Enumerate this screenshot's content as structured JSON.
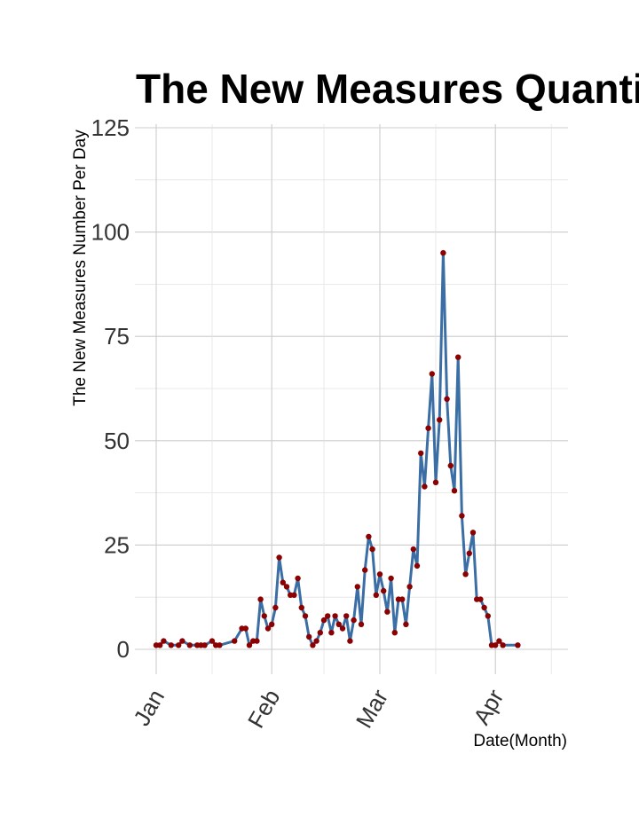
{
  "chart_data": {
    "type": "line",
    "title": "The New Measures Quantity Per Day",
    "xlabel": "Date(Month)",
    "ylabel": "The New Measures Number Per Day",
    "x_ticks": [
      "Jan",
      "Feb",
      "Mar",
      "Apr"
    ],
    "y_ticks": [
      "0",
      "25",
      "50",
      "75",
      "100",
      "125"
    ],
    "ylim": [
      0,
      125
    ],
    "xlim": [
      "2020-01-01",
      "2020-04-30"
    ],
    "grid": true,
    "line_color": "#3a6ea5",
    "point_color": "#8b0000",
    "series": [
      {
        "x": [
          "2020-01-01",
          "2020-01-02",
          "2020-01-03",
          "2020-01-05",
          "2020-01-07",
          "2020-01-08",
          "2020-01-10",
          "2020-01-12",
          "2020-01-13",
          "2020-01-14",
          "2020-01-16",
          "2020-01-17",
          "2020-01-18",
          "2020-01-22",
          "2020-01-24",
          "2020-01-25",
          "2020-01-26",
          "2020-01-27",
          "2020-01-28",
          "2020-01-29",
          "2020-01-30",
          "2020-01-31",
          "2020-02-01",
          "2020-02-02",
          "2020-02-03",
          "2020-02-04",
          "2020-02-05",
          "2020-02-06",
          "2020-02-07",
          "2020-02-08",
          "2020-02-09",
          "2020-02-10",
          "2020-02-11",
          "2020-02-12",
          "2020-02-13",
          "2020-02-14",
          "2020-02-15",
          "2020-02-16",
          "2020-02-17",
          "2020-02-18",
          "2020-02-19",
          "2020-02-20",
          "2020-02-21",
          "2020-02-22",
          "2020-02-23",
          "2020-02-24",
          "2020-02-25",
          "2020-02-26",
          "2020-02-27",
          "2020-02-28",
          "2020-02-29",
          "2020-03-01",
          "2020-03-02",
          "2020-03-03",
          "2020-03-04",
          "2020-03-05",
          "2020-03-06",
          "2020-03-07",
          "2020-03-08",
          "2020-03-09",
          "2020-03-10",
          "2020-03-11",
          "2020-03-12",
          "2020-03-13",
          "2020-03-14",
          "2020-03-15",
          "2020-03-16",
          "2020-03-17",
          "2020-03-18",
          "2020-03-19",
          "2020-03-20",
          "2020-03-21",
          "2020-03-22",
          "2020-03-23",
          "2020-03-24",
          "2020-03-25",
          "2020-03-26",
          "2020-03-27",
          "2020-03-28",
          "2020-03-29",
          "2020-03-30",
          "2020-03-31",
          "2020-04-01",
          "2020-04-02",
          "2020-04-03",
          "2020-04-07"
        ],
        "values": [
          1,
          1,
          2,
          1,
          1,
          2,
          1,
          1,
          1,
          1,
          2,
          1,
          1,
          2,
          5,
          5,
          1,
          2,
          2,
          12,
          8,
          5,
          6,
          10,
          22,
          16,
          15,
          13,
          13,
          17,
          10,
          8,
          3,
          1,
          2,
          4,
          7,
          8,
          4,
          8,
          6,
          5,
          8,
          2,
          7,
          15,
          6,
          19,
          27,
          24,
          13,
          18,
          14,
          9,
          17,
          4,
          12,
          12,
          6,
          15,
          24,
          20,
          47,
          39,
          53,
          66,
          40,
          55,
          95,
          60,
          44,
          38,
          70,
          32,
          18,
          23,
          28,
          12,
          12,
          10,
          8,
          1,
          1,
          2,
          1,
          1
        ]
      }
    ]
  }
}
